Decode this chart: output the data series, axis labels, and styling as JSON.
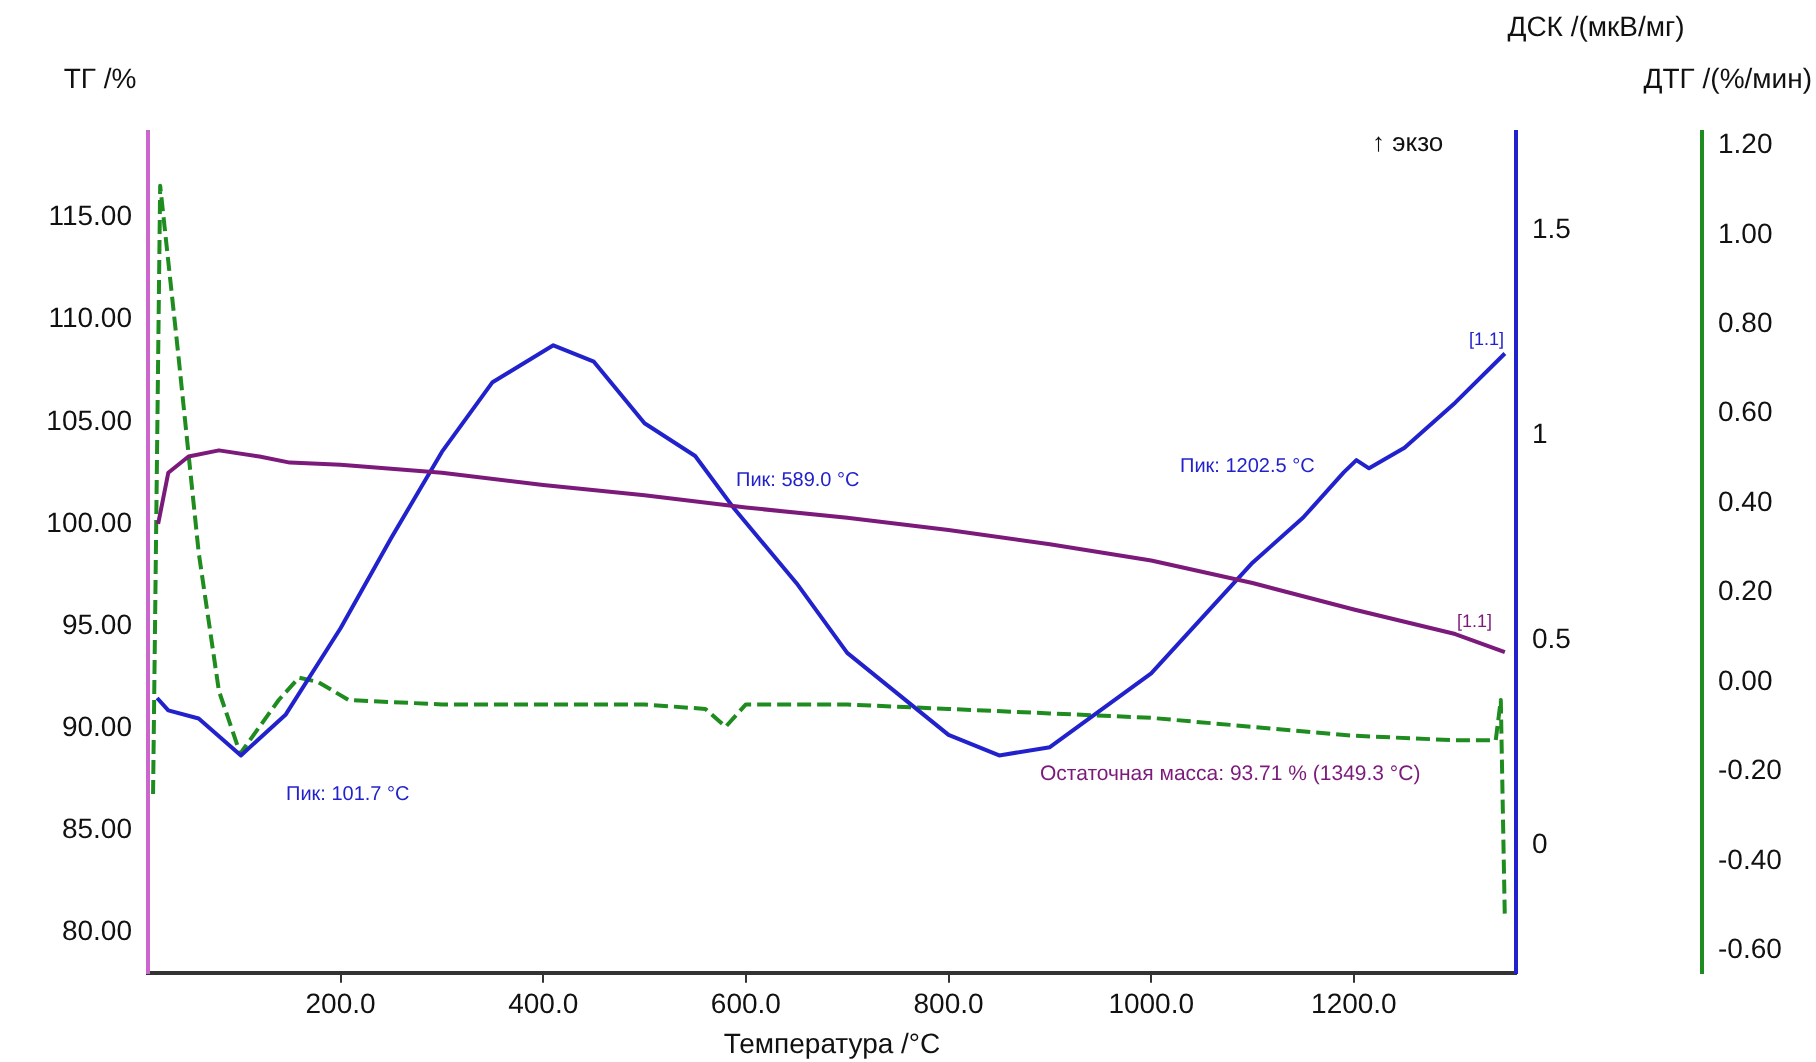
{
  "chart_data": {
    "type": "line",
    "xlabel": "Температура /°C",
    "ylabel": "ТГ /%",
    "y2label": "ДСК /(мкВ/мг)",
    "y3label": "ДТГ /(%/мин)",
    "xlim": [
      10,
      1360
    ],
    "xticks": [
      {
        "value": 200,
        "label": "200.0"
      },
      {
        "value": 400,
        "label": "400.0"
      },
      {
        "value": 600,
        "label": "600.0"
      },
      {
        "value": 800,
        "label": "800.0"
      },
      {
        "value": 1000,
        "label": "1000.0"
      },
      {
        "value": 1200,
        "label": "1200.0"
      }
    ],
    "ylim": [
      78,
      119.2
    ],
    "yticks": [
      {
        "value": 80,
        "label": "80.00"
      },
      {
        "value": 85,
        "label": "85.00"
      },
      {
        "value": 90,
        "label": "90.00"
      },
      {
        "value": 95,
        "label": "95.00"
      },
      {
        "value": 100,
        "label": "100.00"
      },
      {
        "value": 105,
        "label": "105.00"
      },
      {
        "value": 110,
        "label": "110.00"
      },
      {
        "value": 115,
        "label": "115.00"
      }
    ],
    "y2lim": [
      -0.31,
      1.74
    ],
    "y2ticks": [
      0,
      0.5,
      1,
      1.5
    ],
    "y3lim": [
      -0.65,
      1.23
    ],
    "y3ticks": [
      {
        "value": -0.6,
        "label": "-0.60"
      },
      {
        "value": -0.4,
        "label": "-0.40"
      },
      {
        "value": -0.2,
        "label": "-0.20"
      },
      {
        "value": 0,
        "label": "0.00"
      },
      {
        "value": 0.2,
        "label": "0.20"
      },
      {
        "value": 0.4,
        "label": "0.40"
      },
      {
        "value": 0.6,
        "label": "0.60"
      },
      {
        "value": 0.8,
        "label": "0.80"
      },
      {
        "value": 1.0,
        "label": "1.00"
      },
      {
        "value": 1.2,
        "label": "1.20"
      }
    ],
    "grid": false,
    "legend": false,
    "marker": "none",
    "series": [
      {
        "color": "#7b1a7b",
        "axis": "y",
        "line_style": "solid",
        "x": [
          20,
          30,
          50,
          80,
          120,
          150,
          200,
          300,
          400,
          500,
          600,
          700,
          800,
          900,
          1000,
          1100,
          1200,
          1300,
          1349
        ],
        "values": [
          100,
          102.5,
          103.3,
          103.6,
          103.3,
          103.0,
          102.9,
          102.5,
          101.9,
          101.4,
          100.8,
          100.3,
          99.7,
          99.0,
          98.2,
          97.1,
          95.8,
          94.6,
          93.71
        ]
      },
      {
        "color": "#2222cc",
        "axis": "y2",
        "line_style": "solid",
        "x": [
          19,
          30,
          60,
          101.7,
          146,
          200,
          250,
          300,
          350,
          410,
          450,
          500,
          550,
          589,
          650,
          700,
          800,
          850,
          900,
          1000,
          1100,
          1150,
          1190,
          1202.5,
          1215,
          1250,
          1300,
          1349
        ],
        "values": [
          0.36,
          0.33,
          0.31,
          0.22,
          0.32,
          0.53,
          0.75,
          0.96,
          1.13,
          1.22,
          1.18,
          1.03,
          0.95,
          0.82,
          0.64,
          0.47,
          0.27,
          0.22,
          0.24,
          0.42,
          0.69,
          0.8,
          0.91,
          0.94,
          0.92,
          0.97,
          1.08,
          1.2
        ]
      },
      {
        "color": "#1e8c1e",
        "axis": "y3",
        "line_style": "dashed",
        "x": [
          15,
          22,
          40,
          60,
          80,
          101,
          139,
          159,
          178,
          208,
          300,
          400,
          500,
          560,
          580,
          600,
          700,
          800,
          900,
          1000,
          1100,
          1200,
          1300,
          1340,
          1345,
          1349
        ],
        "values": [
          -0.25,
          1.11,
          0.73,
          0.29,
          -0.02,
          -0.16,
          -0.04,
          0.01,
          0,
          -0.04,
          -0.05,
          -0.05,
          -0.05,
          -0.06,
          -0.1,
          -0.05,
          -0.05,
          -0.06,
          -0.07,
          -0.08,
          -0.1,
          -0.12,
          -0.13,
          -0.13,
          -0.04,
          -0.53
        ]
      }
    ],
    "annotations": [
      "↑ экзо",
      "Пик: 589.0 °C",
      "Пик: 101.7 °C",
      "Пик: 1202.5 °C",
      "[1.1]",
      "[1.1]",
      "Остаточная масса: 93.71 % (1349.3 °C)"
    ]
  }
}
